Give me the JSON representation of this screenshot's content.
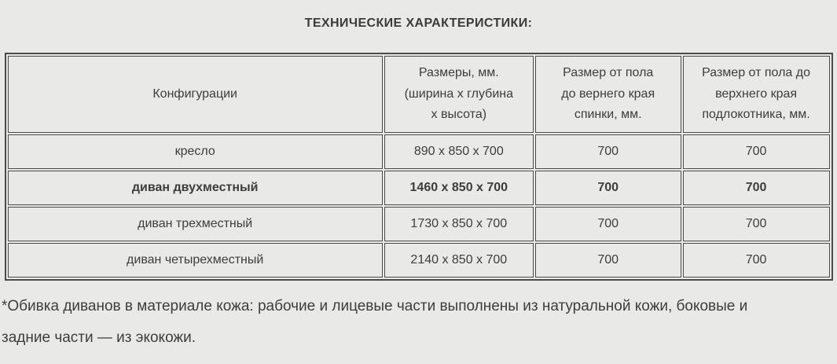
{
  "page": {
    "background_color": "#e9e9e8",
    "text_color": "#3d3d3d",
    "table_border_color": "#4b4b4b"
  },
  "title": "ТЕХНИЧЕСКИЕ ХАРАКТЕРИСТИКИ:",
  "table": {
    "headers": [
      "Конфигурации",
      "Размеры, мм.\n(ширина х глубина\nх высота)",
      "Размер от пола\nдо вернего края\nспинки, мм.",
      "Размер от пола до\nверхнего края\nподлокотника, мм."
    ],
    "rows": [
      {
        "bold": false,
        "cells": [
          "кресло",
          "890 х 850 х 700",
          "700",
          "700"
        ]
      },
      {
        "bold": true,
        "cells": [
          "диван двухместный",
          "1460 х 850 х 700",
          "700",
          "700"
        ]
      },
      {
        "bold": false,
        "cells": [
          "диван трехместный",
          "1730 х 850 х 700",
          "700",
          "700"
        ]
      },
      {
        "bold": false,
        "cells": [
          "диван четырехместный",
          "2140 х 850 х 700",
          "700",
          "700"
        ]
      }
    ]
  },
  "footnote": "*Обивка диванов в материале кожа: рабочие и лицевые части выполнены из натуральной кожи, боковые и\nзадние части — из экокожи."
}
